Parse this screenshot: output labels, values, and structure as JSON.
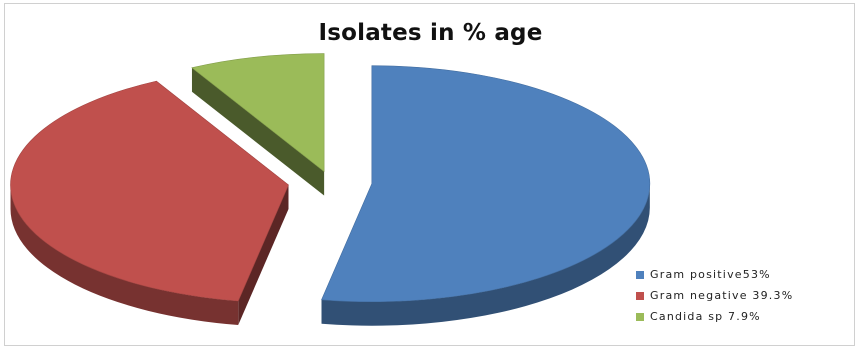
{
  "chart_data": {
    "type": "pie",
    "title": "Isolates in % age",
    "exploded": true,
    "three_d": true,
    "legend_position": "bottom-right",
    "series": [
      {
        "categories": [
          "Gram positive",
          "Gram negative",
          "Candida sp"
        ],
        "values": [
          53,
          39.3,
          7.9
        ],
        "colors": [
          "#4f81bd",
          "#c0504d",
          "#9bbb59"
        ],
        "legend_labels": [
          "Gram positive53%",
          "Gram negative 39.3%",
          "Candida sp 7.9%"
        ]
      }
    ]
  }
}
